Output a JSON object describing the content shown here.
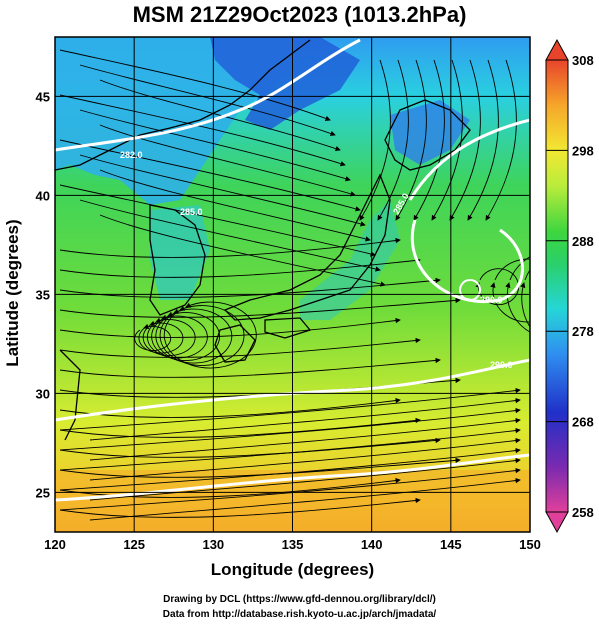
{
  "title": "MSM 21Z29Oct2023 (1013.2hPa)",
  "axes": {
    "xlabel": "Longitude (degrees)",
    "ylabel": "Latitude  (degrees)",
    "xlim": [
      120,
      150
    ],
    "ylim": [
      23,
      48
    ],
    "xticks": [
      "120",
      "125",
      "130",
      "135",
      "140",
      "145",
      "150"
    ],
    "yticks": [
      "25",
      "30",
      "35",
      "40",
      "45"
    ]
  },
  "colorbar": {
    "range": [
      258,
      308
    ],
    "labels": [
      "308",
      "298",
      "288",
      "278",
      "268",
      "258"
    ],
    "colors": [
      "#e0409a",
      "#7a2ab0",
      "#2030c8",
      "#2f8ff0",
      "#25d6d6",
      "#2ad06a",
      "#3ed63e",
      "#b8ec3c",
      "#f2e832",
      "#f6a62a",
      "#e8442c"
    ]
  },
  "contour_labels": [
    "282.0",
    "285.0",
    "285.0",
    "290.0",
    "290.0"
  ],
  "credits": {
    "line1": "Drawing by DCL (https://www.gfd-dennou.org/library/dcl/)",
    "line2": "Data from http://database.rish.kyoto-u.ac.jp/arch/jmadata/"
  }
}
